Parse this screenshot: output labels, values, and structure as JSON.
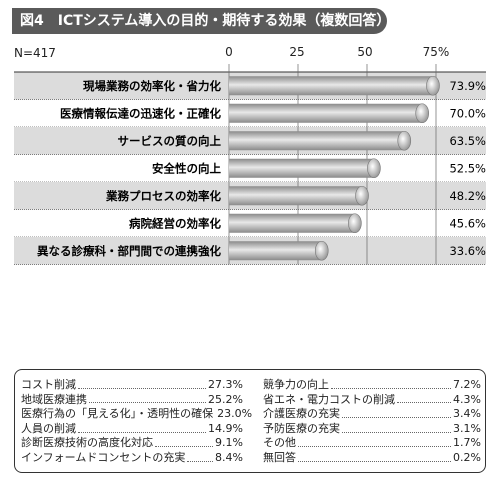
{
  "header": {
    "title": "図4　ICTシステム導入の目的・期待する効果（複数回答）"
  },
  "sample": {
    "n_label": "N=417"
  },
  "chart_data": {
    "type": "bar",
    "orientation": "horizontal",
    "title": "図4　ICTシステム導入の目的・期待する効果（複数回答）",
    "x_ticks": [
      "0",
      "25",
      "50",
      "75%"
    ],
    "xlim": [
      0,
      75
    ],
    "grid": true,
    "categories": [
      "現場業務の効率化・省力化",
      "医療情報伝達の迅速化・正確化",
      "サービスの質の向上",
      "安全性の向上",
      "業務プロセスの効率化",
      "病院経営の効率化",
      "異なる診療科・部門間での連携強化"
    ],
    "values": [
      73.9,
      70.0,
      63.5,
      52.5,
      48.2,
      45.6,
      33.6
    ],
    "value_labels": [
      "73.9%",
      "70.0%",
      "63.5%",
      "52.5%",
      "48.2%",
      "45.6%",
      "33.6%"
    ],
    "colors": {
      "bar_dark": "#8a8a8a",
      "bar_light": "#e8e8e8",
      "band": "#dcdcdc",
      "grid": "#666666"
    }
  },
  "others": {
    "left": [
      {
        "name": "コスト削減",
        "value": "27.3%"
      },
      {
        "name": "地域医療連携",
        "value": "25.2%"
      },
      {
        "name": "医療行為の「見える化」・透明性の確保",
        "value": "23.0%"
      },
      {
        "name": "人員の削減",
        "value": "14.9%"
      },
      {
        "name": "診断医療技術の高度化対応",
        "value": "9.1%"
      },
      {
        "name": "インフォームドコンセントの充実",
        "value": "8.4%"
      }
    ],
    "right": [
      {
        "name": "競争力の向上",
        "value": "7.2%"
      },
      {
        "name": "省エネ・電力コストの削減",
        "value": "4.3%"
      },
      {
        "name": "介護医療の充実",
        "value": "3.4%"
      },
      {
        "name": "予防医療の充実",
        "value": "3.1%"
      },
      {
        "name": "その他",
        "value": "1.7%"
      },
      {
        "name": "無回答",
        "value": "0.2%"
      }
    ]
  }
}
